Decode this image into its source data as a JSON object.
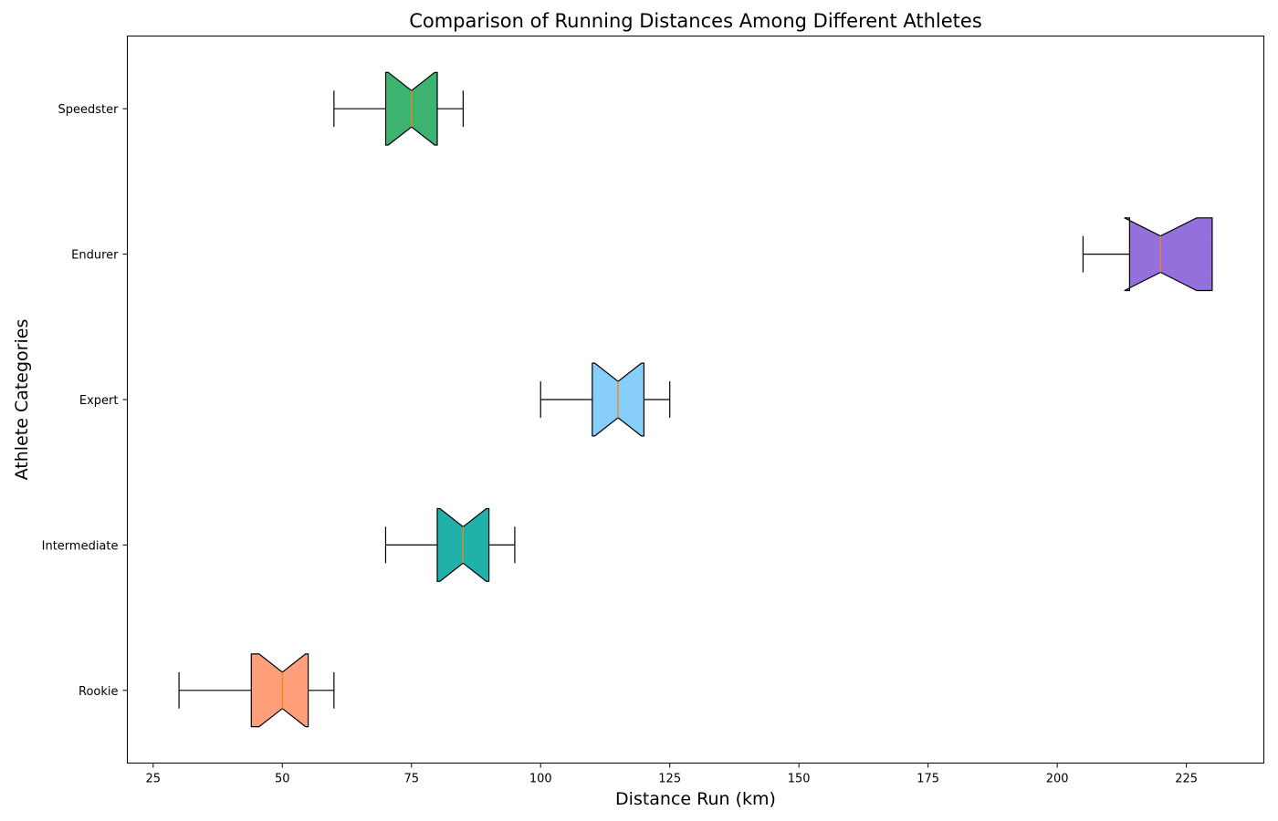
{
  "chart_data": {
    "type": "boxplot",
    "orientation": "horizontal",
    "notched": true,
    "title": "Comparison of Running Distances Among Different Athletes",
    "xlabel": "Distance Run (km)",
    "ylabel": "Athlete Categories",
    "xlim": [
      20,
      240
    ],
    "x_ticks": [
      25,
      50,
      75,
      100,
      125,
      150,
      175,
      200,
      225
    ],
    "grid": false,
    "categories": [
      "Rookie",
      "Intermediate",
      "Expert",
      "Endurer",
      "Speedster"
    ],
    "series": [
      {
        "category": "Rookie",
        "whisker_low": 30,
        "q1": 44,
        "notch_low": 45.5,
        "median": 50,
        "notch_high": 54.5,
        "q3": 55,
        "whisker_high": 60,
        "color": "#FFA07A"
      },
      {
        "category": "Intermediate",
        "whisker_low": 70,
        "q1": 80,
        "notch_low": 80.5,
        "median": 85,
        "notch_high": 89.5,
        "q3": 90,
        "whisker_high": 95,
        "color": "#20B2AA"
      },
      {
        "category": "Expert",
        "whisker_low": 100,
        "q1": 110,
        "notch_low": 110.5,
        "median": 115,
        "notch_high": 119.5,
        "q3": 120,
        "whisker_high": 125,
        "color": "#87CEFA"
      },
      {
        "category": "Endurer",
        "whisker_low": 205,
        "q1": 214,
        "notch_low": 213,
        "median": 220,
        "notch_high": 227,
        "q3": 230,
        "whisker_high": 230,
        "color": "#9370DB"
      },
      {
        "category": "Speedster",
        "whisker_low": 60,
        "q1": 70,
        "notch_low": 70.5,
        "median": 75,
        "notch_high": 79.5,
        "q3": 80,
        "whisker_high": 85,
        "color": "#3CB371"
      }
    ],
    "median_color": "#FF7F0E"
  }
}
